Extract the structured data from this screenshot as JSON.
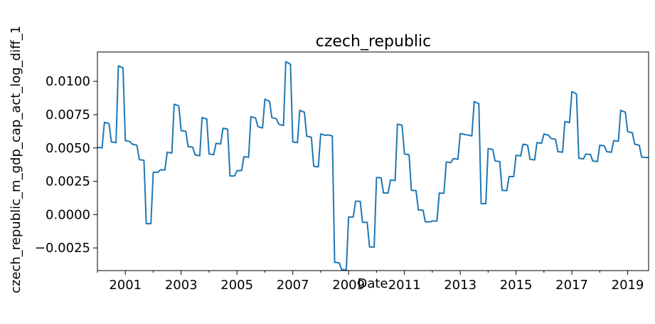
{
  "chart_data": {
    "type": "line",
    "title": "czech_republic",
    "xlabel": "Date",
    "ylabel": "czech_republic_m_gdp_cap_act_log_diff_1",
    "xlim": [
      "2000-01",
      "2019-10"
    ],
    "ylim": [
      -0.0042,
      0.0122
    ],
    "x_ticks": [
      "2001",
      "2003",
      "2005",
      "2007",
      "2009",
      "2011",
      "2013",
      "2015",
      "2017",
      "2019"
    ],
    "y_ticks": [
      "−0.0025",
      "0.0000",
      "0.0025",
      "0.0050",
      "0.0075",
      "0.0100"
    ],
    "y_tick_values": [
      -0.0025,
      0.0,
      0.0025,
      0.005,
      0.0075,
      0.01
    ],
    "grid": false,
    "line_color": "#1f77b4",
    "series": [
      {
        "points": [
          [
            "2000-01",
            0.00505
          ],
          [
            "2000-02",
            0.00503
          ],
          [
            "2000-03",
            0.005
          ],
          [
            "2000-04",
            0.00692
          ],
          [
            "2000-05",
            0.00688
          ],
          [
            "2000-06",
            0.00682
          ],
          [
            "2000-07",
            0.00545
          ],
          [
            "2000-08",
            0.00543
          ],
          [
            "2000-09",
            0.0054
          ],
          [
            "2000-10",
            0.01115
          ],
          [
            "2000-11",
            0.01108
          ],
          [
            "2000-12",
            0.011
          ],
          [
            "2001-01",
            0.00555
          ],
          [
            "2001-02",
            0.00552
          ],
          [
            "2001-03",
            0.00548
          ],
          [
            "2001-04",
            0.00528
          ],
          [
            "2001-05",
            0.00525
          ],
          [
            "2001-06",
            0.0052
          ],
          [
            "2001-07",
            0.00412
          ],
          [
            "2001-08",
            0.0041
          ],
          [
            "2001-09",
            0.00408
          ],
          [
            "2001-10",
            -0.00068
          ],
          [
            "2001-11",
            -0.00068
          ],
          [
            "2001-12",
            -0.00068
          ],
          [
            "2002-01",
            0.00318
          ],
          [
            "2002-02",
            0.00318
          ],
          [
            "2002-03",
            0.00318
          ],
          [
            "2002-04",
            0.00335
          ],
          [
            "2002-05",
            0.00335
          ],
          [
            "2002-06",
            0.00335
          ],
          [
            "2002-07",
            0.00468
          ],
          [
            "2002-08",
            0.00465
          ],
          [
            "2002-09",
            0.00462
          ],
          [
            "2002-10",
            0.00828
          ],
          [
            "2002-11",
            0.00822
          ],
          [
            "2002-12",
            0.00815
          ],
          [
            "2003-01",
            0.0063
          ],
          [
            "2003-02",
            0.00628
          ],
          [
            "2003-03",
            0.00625
          ],
          [
            "2003-04",
            0.0051
          ],
          [
            "2003-05",
            0.00508
          ],
          [
            "2003-06",
            0.00505
          ],
          [
            "2003-07",
            0.00448
          ],
          [
            "2003-08",
            0.00445
          ],
          [
            "2003-09",
            0.00442
          ],
          [
            "2003-10",
            0.00728
          ],
          [
            "2003-11",
            0.00722
          ],
          [
            "2003-12",
            0.00718
          ],
          [
            "2004-01",
            0.00455
          ],
          [
            "2004-02",
            0.00452
          ],
          [
            "2004-03",
            0.0045
          ],
          [
            "2004-04",
            0.00535
          ],
          [
            "2004-05",
            0.00533
          ],
          [
            "2004-06",
            0.0053
          ],
          [
            "2004-07",
            0.00648
          ],
          [
            "2004-08",
            0.00645
          ],
          [
            "2004-09",
            0.0064
          ],
          [
            "2004-10",
            0.0029
          ],
          [
            "2004-11",
            0.0029
          ],
          [
            "2004-12",
            0.0029
          ],
          [
            "2005-01",
            0.0033
          ],
          [
            "2005-02",
            0.0033
          ],
          [
            "2005-03",
            0.0033
          ],
          [
            "2005-04",
            0.00435
          ],
          [
            "2005-05",
            0.00433
          ],
          [
            "2005-06",
            0.0043
          ],
          [
            "2005-07",
            0.00735
          ],
          [
            "2005-08",
            0.0073
          ],
          [
            "2005-09",
            0.00725
          ],
          [
            "2005-10",
            0.0066
          ],
          [
            "2005-11",
            0.00655
          ],
          [
            "2005-12",
            0.0065
          ],
          [
            "2006-01",
            0.00865
          ],
          [
            "2006-02",
            0.00858
          ],
          [
            "2006-03",
            0.0085
          ],
          [
            "2006-04",
            0.00728
          ],
          [
            "2006-05",
            0.00723
          ],
          [
            "2006-06",
            0.00718
          ],
          [
            "2006-07",
            0.00678
          ],
          [
            "2006-08",
            0.00673
          ],
          [
            "2006-09",
            0.00668
          ],
          [
            "2006-10",
            0.01148
          ],
          [
            "2006-11",
            0.01138
          ],
          [
            "2006-12",
            0.01128
          ],
          [
            "2007-01",
            0.00545
          ],
          [
            "2007-02",
            0.00542
          ],
          [
            "2007-03",
            0.0054
          ],
          [
            "2007-04",
            0.00782
          ],
          [
            "2007-05",
            0.00775
          ],
          [
            "2007-06",
            0.00768
          ],
          [
            "2007-07",
            0.00588
          ],
          [
            "2007-08",
            0.00585
          ],
          [
            "2007-09",
            0.0058
          ],
          [
            "2007-10",
            0.00362
          ],
          [
            "2007-11",
            0.0036
          ],
          [
            "2007-12",
            0.00358
          ],
          [
            "2008-01",
            0.00605
          ],
          [
            "2008-02",
            0.006
          ],
          [
            "2008-03",
            0.00595
          ],
          [
            "2008-04",
            0.00598
          ],
          [
            "2008-05",
            0.00595
          ],
          [
            "2008-06",
            0.0059
          ],
          [
            "2008-07",
            -0.00358
          ],
          [
            "2008-08",
            -0.0036
          ],
          [
            "2008-09",
            -0.00362
          ],
          [
            "2008-10",
            -0.00412
          ],
          [
            "2008-11",
            -0.00413
          ],
          [
            "2008-12",
            -0.00415
          ],
          [
            "2009-01",
            -0.00018
          ],
          [
            "2009-02",
            -0.00018
          ],
          [
            "2009-03",
            -0.00018
          ],
          [
            "2009-04",
            0.001
          ],
          [
            "2009-05",
            0.001
          ],
          [
            "2009-06",
            0.001
          ],
          [
            "2009-07",
            -0.00058
          ],
          [
            "2009-08",
            -0.00058
          ],
          [
            "2009-09",
            -0.00058
          ],
          [
            "2009-10",
            -0.00243
          ],
          [
            "2009-11",
            -0.00243
          ],
          [
            "2009-12",
            -0.00243
          ],
          [
            "2010-01",
            0.00278
          ],
          [
            "2010-02",
            0.00278
          ],
          [
            "2010-03",
            0.00275
          ],
          [
            "2010-04",
            0.00162
          ],
          [
            "2010-05",
            0.00162
          ],
          [
            "2010-06",
            0.00162
          ],
          [
            "2010-07",
            0.0026
          ],
          [
            "2010-08",
            0.00258
          ],
          [
            "2010-09",
            0.00255
          ],
          [
            "2010-10",
            0.00678
          ],
          [
            "2010-11",
            0.00675
          ],
          [
            "2010-12",
            0.0067
          ],
          [
            "2011-01",
            0.00455
          ],
          [
            "2011-02",
            0.00452
          ],
          [
            "2011-03",
            0.0045
          ],
          [
            "2011-04",
            0.00182
          ],
          [
            "2011-05",
            0.00181
          ],
          [
            "2011-06",
            0.0018
          ],
          [
            "2011-07",
            0.00035
          ],
          [
            "2011-08",
            0.00034
          ],
          [
            "2011-09",
            0.00033
          ],
          [
            "2011-10",
            -0.00055
          ],
          [
            "2011-11",
            -0.00055
          ],
          [
            "2011-12",
            -0.00055
          ],
          [
            "2012-01",
            -0.00048
          ],
          [
            "2012-02",
            -0.00048
          ],
          [
            "2012-03",
            -0.00048
          ],
          [
            "2012-04",
            0.00162
          ],
          [
            "2012-05",
            0.00161
          ],
          [
            "2012-06",
            0.0016
          ],
          [
            "2012-07",
            0.00395
          ],
          [
            "2012-08",
            0.00393
          ],
          [
            "2012-09",
            0.0039
          ],
          [
            "2012-10",
            0.0042
          ],
          [
            "2012-11",
            0.00418
          ],
          [
            "2012-12",
            0.00415
          ],
          [
            "2013-01",
            0.00608
          ],
          [
            "2013-02",
            0.00605
          ],
          [
            "2013-03",
            0.006
          ],
          [
            "2013-04",
            0.00598
          ],
          [
            "2013-05",
            0.00595
          ],
          [
            "2013-06",
            0.0059
          ],
          [
            "2013-07",
            0.00848
          ],
          [
            "2013-08",
            0.0084
          ],
          [
            "2013-09",
            0.00832
          ],
          [
            "2013-10",
            0.00082
          ],
          [
            "2013-11",
            0.00082
          ],
          [
            "2013-12",
            0.00082
          ],
          [
            "2014-01",
            0.00495
          ],
          [
            "2014-02",
            0.00492
          ],
          [
            "2014-03",
            0.00488
          ],
          [
            "2014-04",
            0.00402
          ],
          [
            "2014-05",
            0.004
          ],
          [
            "2014-06",
            0.00398
          ],
          [
            "2014-07",
            0.00182
          ],
          [
            "2014-08",
            0.00181
          ],
          [
            "2014-09",
            0.0018
          ],
          [
            "2014-10",
            0.00285
          ],
          [
            "2014-11",
            0.00285
          ],
          [
            "2014-12",
            0.00285
          ],
          [
            "2015-01",
            0.00445
          ],
          [
            "2015-02",
            0.00443
          ],
          [
            "2015-03",
            0.0044
          ],
          [
            "2015-04",
            0.00528
          ],
          [
            "2015-05",
            0.00525
          ],
          [
            "2015-06",
            0.0052
          ],
          [
            "2015-07",
            0.00415
          ],
          [
            "2015-08",
            0.00413
          ],
          [
            "2015-09",
            0.0041
          ],
          [
            "2015-10",
            0.0054
          ],
          [
            "2015-11",
            0.00538
          ],
          [
            "2015-12",
            0.00535
          ],
          [
            "2016-01",
            0.00605
          ],
          [
            "2016-02",
            0.006
          ],
          [
            "2016-03",
            0.00595
          ],
          [
            "2016-04",
            0.00572
          ],
          [
            "2016-05",
            0.00568
          ],
          [
            "2016-06",
            0.00565
          ],
          [
            "2016-07",
            0.00472
          ],
          [
            "2016-08",
            0.0047
          ],
          [
            "2016-09",
            0.00468
          ],
          [
            "2016-10",
            0.00698
          ],
          [
            "2016-11",
            0.00695
          ],
          [
            "2016-12",
            0.0069
          ],
          [
            "2017-01",
            0.00922
          ],
          [
            "2017-02",
            0.00915
          ],
          [
            "2017-03",
            0.00905
          ],
          [
            "2017-04",
            0.00422
          ],
          [
            "2017-05",
            0.0042
          ],
          [
            "2017-06",
            0.00418
          ],
          [
            "2017-07",
            0.00455
          ],
          [
            "2017-08",
            0.00453
          ],
          [
            "2017-09",
            0.0045
          ],
          [
            "2017-10",
            0.00402
          ],
          [
            "2017-11",
            0.004
          ],
          [
            "2017-12",
            0.00398
          ],
          [
            "2018-01",
            0.0052
          ],
          [
            "2018-02",
            0.00518
          ],
          [
            "2018-03",
            0.00515
          ],
          [
            "2018-04",
            0.00472
          ],
          [
            "2018-05",
            0.0047
          ],
          [
            "2018-06",
            0.00468
          ],
          [
            "2018-07",
            0.00555
          ],
          [
            "2018-08",
            0.00553
          ],
          [
            "2018-09",
            0.0055
          ],
          [
            "2018-10",
            0.00782
          ],
          [
            "2018-11",
            0.00775
          ],
          [
            "2018-12",
            0.00768
          ],
          [
            "2019-01",
            0.00622
          ],
          [
            "2019-02",
            0.00618
          ],
          [
            "2019-03",
            0.00615
          ],
          [
            "2019-04",
            0.00528
          ],
          [
            "2019-05",
            0.00525
          ],
          [
            "2019-06",
            0.0052
          ],
          [
            "2019-07",
            0.00432
          ],
          [
            "2019-08",
            0.0043
          ],
          [
            "2019-09",
            0.00428
          ],
          [
            "2019-10",
            0.00428
          ]
        ]
      }
    ]
  }
}
